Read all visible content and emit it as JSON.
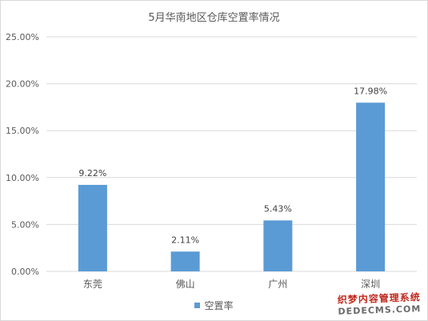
{
  "chart_data": {
    "type": "bar",
    "title": "5月华南地区仓库空置率情况",
    "categories": [
      "东莞",
      "佛山",
      "广州",
      "深圳"
    ],
    "values": [
      9.22,
      2.11,
      5.43,
      17.98
    ],
    "value_labels": [
      "9.22%",
      "2.11%",
      "5.43%",
      "17.98%"
    ],
    "series": [
      {
        "name": "空置率",
        "values": [
          9.22,
          2.11,
          5.43,
          17.98
        ]
      }
    ],
    "y_ticks": [
      "0.00%",
      "5.00%",
      "10.00%",
      "15.00%",
      "20.00%",
      "25.00%"
    ],
    "ylim": [
      0,
      25
    ],
    "xlabel": "",
    "ylabel": "",
    "grid": true,
    "legend_position": "bottom",
    "bar_color": "#5b9bd5",
    "grid_color": "#d9d9d9",
    "text_color": "#595959"
  },
  "watermark": {
    "line1": "织梦内容管理系统",
    "line2": "DEDECMS.COM"
  }
}
